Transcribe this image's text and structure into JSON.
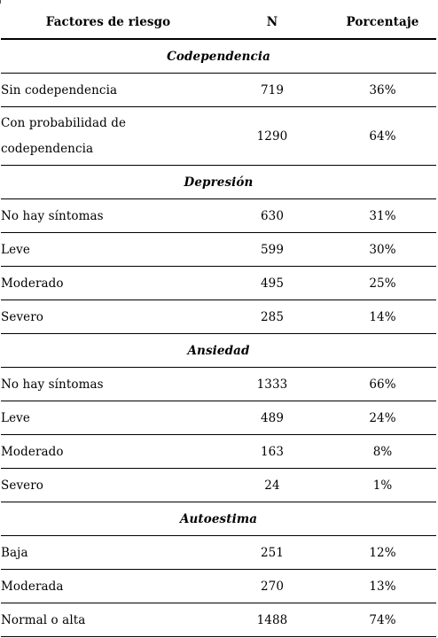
{
  "table": {
    "header": {
      "factor": "Factores de riesgo",
      "n": "N",
      "percent": "Porcentaje"
    },
    "sections": [
      {
        "title": "Codependencia",
        "rows": [
          {
            "label": "Sin codependencia",
            "n": "719",
            "pct": "36%"
          },
          {
            "label": "Con probabilidad de codependencia",
            "n": "1290",
            "pct": "64%"
          }
        ]
      },
      {
        "title": "Depresión",
        "rows": [
          {
            "label": "No hay síntomas",
            "n": "630",
            "pct": "31%"
          },
          {
            "label": "Leve",
            "n": "599",
            "pct": "30%"
          },
          {
            "label": "Moderado",
            "n": "495",
            "pct": "25%"
          },
          {
            "label": "Severo",
            "n": "285",
            "pct": "14%"
          }
        ]
      },
      {
        "title": "Ansiedad",
        "rows": [
          {
            "label": "No hay síntomas",
            "n": "1333",
            "pct": "66%"
          },
          {
            "label": "Leve",
            "n": "489",
            "pct": "24%"
          },
          {
            "label": "Moderado",
            "n": "163",
            "pct": "8%"
          },
          {
            "label": "Severo",
            "n": "24",
            "pct": "1%"
          }
        ]
      },
      {
        "title": "Autoestima",
        "rows": [
          {
            "label": "Baja",
            "n": "251",
            "pct": "12%"
          },
          {
            "label": "Moderada",
            "n": "270",
            "pct": "13%"
          },
          {
            "label": "Normal o alta",
            "n": "1488",
            "pct": "74%"
          }
        ]
      }
    ]
  }
}
